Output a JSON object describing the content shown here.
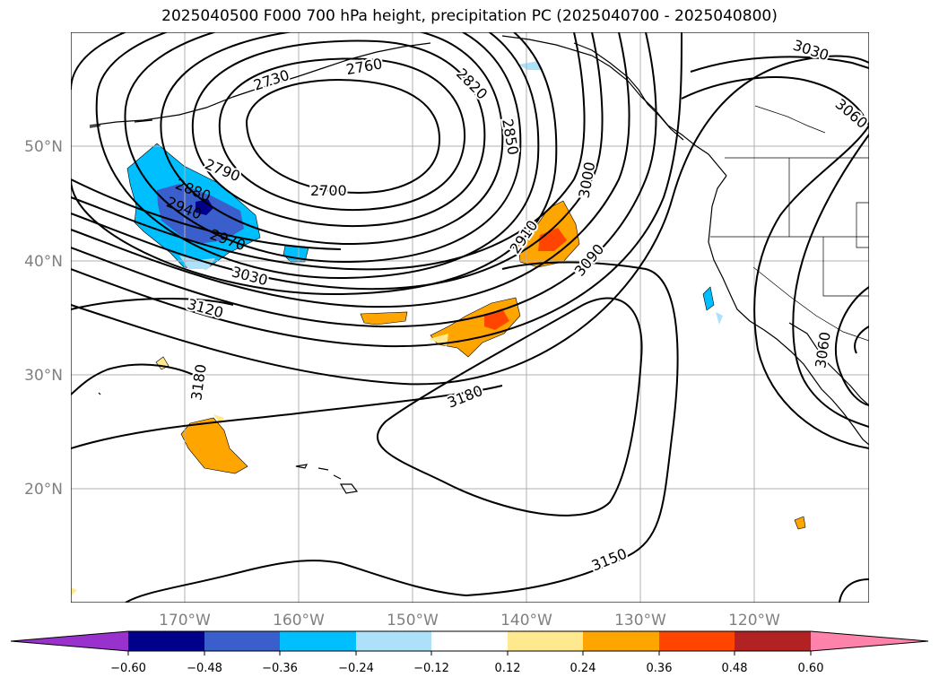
{
  "title": "2025040500 F000 700 hPa height, precipitation PC (2025040700 - 2025040800)",
  "longitude_labels": [
    "170°W",
    "160°W",
    "150°W",
    "140°W",
    "130°W",
    "120°W"
  ],
  "latitude_labels": [
    "50°N",
    "40°N",
    "30°N",
    "20°N"
  ],
  "contour_labels": [
    "2730",
    "2760",
    "2820",
    "2850",
    "3030",
    "3060",
    "2790",
    "2700",
    "2880",
    "2940",
    "2970",
    "3000",
    "2910",
    "3090",
    "3030",
    "3120",
    "3180",
    "3180",
    "3060",
    "3150"
  ],
  "colorbar": {
    "tick_labels": [
      "−0.60",
      "−0.48",
      "−0.36",
      "−0.24",
      "−0.12",
      "0.12",
      "0.24",
      "0.36",
      "0.48",
      "0.60"
    ],
    "colors": [
      "#9932CC",
      "#00008B",
      "#3A5FCD",
      "#00BFFF",
      "#ADE1FA",
      "#FFFFFF",
      "#FFE98F",
      "#FFA500",
      "#FF4500",
      "#B22222",
      "#FF82AB"
    ]
  },
  "shading_colors": {
    "neg_light": "#ADE1FA",
    "neg_mid": "#00BFFF",
    "neg_dark": "#3A5FCD",
    "neg_darkest": "#00008B",
    "pos_light": "#FFE98F",
    "pos_mid": "#FFA500",
    "pos_dark": "#FF4500"
  }
}
